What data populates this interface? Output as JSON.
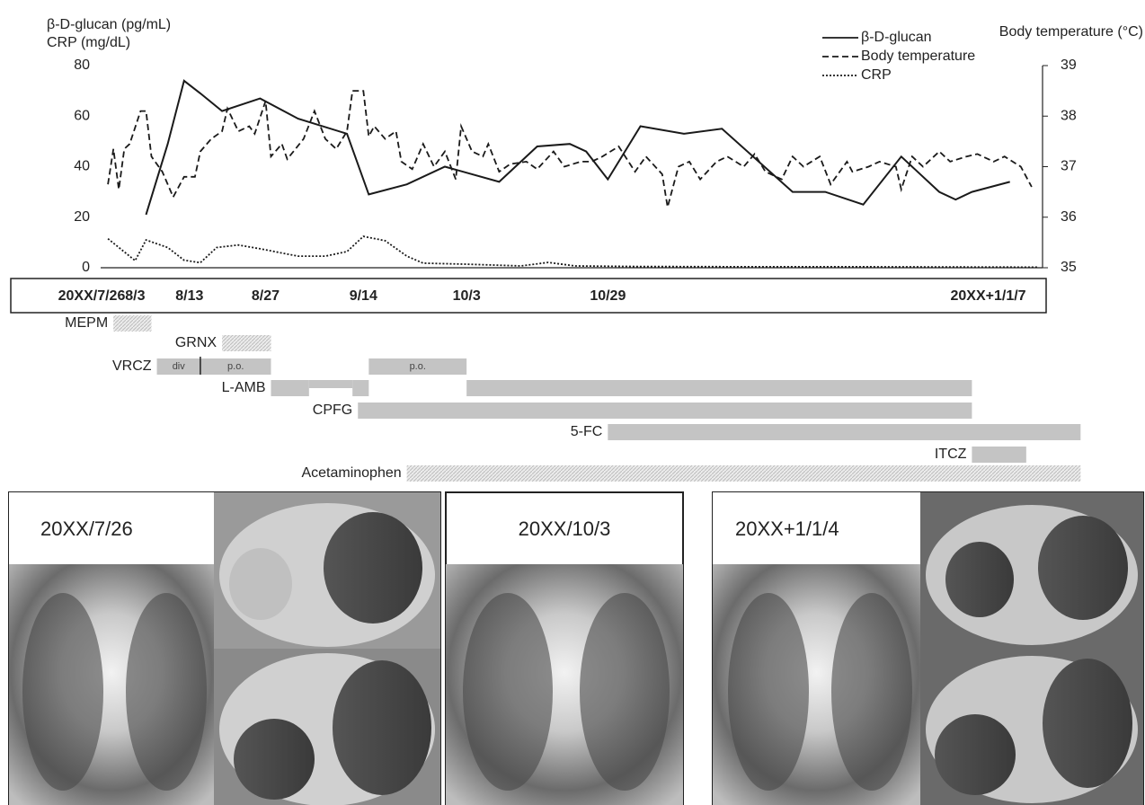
{
  "chart_data": {
    "type": "line",
    "y_label_lines": [
      "β-D-glucan (pg/mL)",
      "CRP (mg/dL)"
    ],
    "y2_label": "Body temperature (°C)",
    "xlim": [
      0,
      175
    ],
    "xticks": [
      {
        "value": 0,
        "label": "20XX/7/26"
      },
      {
        "value": 8,
        "label": "8/3"
      },
      {
        "value": 18,
        "label": "8/13"
      },
      {
        "value": 32,
        "label": "8/27"
      },
      {
        "value": 50,
        "label": "9/14"
      },
      {
        "value": 69,
        "label": "10/3"
      },
      {
        "value": 95,
        "label": "10/29"
      },
      {
        "value": 165,
        "label": "20XX+1/1/7"
      }
    ],
    "ylim": [
      0,
      80
    ],
    "yticks": [
      0,
      20,
      40,
      60,
      80
    ],
    "y2lim": [
      35,
      39
    ],
    "y2ticks": [
      35,
      36,
      37,
      38,
      39
    ],
    "legend": "upper right",
    "series": [
      {
        "name": "β-D-glucan",
        "color": "#1a1a1a",
        "style": "solid",
        "x": [
          10,
          14,
          17,
          20,
          24,
          31,
          38,
          47,
          51,
          58,
          65,
          75,
          82,
          88,
          91,
          95,
          101,
          109,
          116,
          129,
          135,
          142,
          149,
          156,
          159,
          162,
          169
        ],
        "values": [
          21,
          49,
          74,
          69,
          62,
          67,
          59,
          53,
          29,
          33,
          40,
          34,
          48,
          49,
          46,
          35,
          56,
          53,
          55,
          30,
          30,
          25,
          44,
          30,
          27,
          30,
          34
        ]
      },
      {
        "name": "Body temperature",
        "color": "#1a1a1a",
        "style": "dashed",
        "axis": "y2",
        "x": [
          3,
          4,
          5,
          6,
          7,
          9,
          10,
          11,
          13,
          15,
          17,
          19,
          20,
          22,
          24,
          25,
          27,
          29,
          30,
          32,
          33,
          35,
          36,
          39,
          41,
          43,
          45,
          47,
          48,
          50,
          51,
          52,
          54,
          56,
          57,
          59,
          61,
          63,
          65,
          67,
          68,
          70,
          72,
          73,
          75,
          77,
          80,
          82,
          85,
          87,
          90,
          92,
          94,
          97,
          100,
          102,
          105,
          106,
          108,
          110,
          112,
          115,
          117,
          120,
          122,
          124,
          127,
          129,
          131,
          134,
          136,
          139,
          140,
          143,
          145,
          148,
          149,
          151,
          153,
          156,
          158,
          161,
          163,
          166,
          168,
          171,
          173
        ],
        "values": [
          36.65,
          37.35,
          36.55,
          37.35,
          37.45,
          38.1,
          38.1,
          37.2,
          36.9,
          36.4,
          36.8,
          36.8,
          37.3,
          37.55,
          37.7,
          38.15,
          37.7,
          37.8,
          37.65,
          38.3,
          37.2,
          37.45,
          37.15,
          37.55,
          38.1,
          37.55,
          37.35,
          37.7,
          38.5,
          38.5,
          37.6,
          37.8,
          37.55,
          37.7,
          37.1,
          36.95,
          37.45,
          37.0,
          37.3,
          36.75,
          37.8,
          37.3,
          37.2,
          37.45,
          36.9,
          37.05,
          37.1,
          36.95,
          37.3,
          37.0,
          37.1,
          37.1,
          37.2,
          37.4,
          36.9,
          37.2,
          36.85,
          36.2,
          37.0,
          37.1,
          36.75,
          37.1,
          37.2,
          37.0,
          37.25,
          36.9,
          36.75,
          37.2,
          37.0,
          37.2,
          36.65,
          37.1,
          36.9,
          37.0,
          37.1,
          37.0,
          36.55,
          37.2,
          37.0,
          37.3,
          37.1,
          37.2,
          37.25,
          37.1,
          37.2,
          37.0,
          36.6
        ]
      },
      {
        "name": "CRP",
        "color": "#1a1a1a",
        "style": "dotted",
        "x": [
          3,
          8,
          10,
          14,
          17,
          20,
          23,
          27,
          31,
          38,
          43,
          47,
          50,
          54,
          58,
          61,
          69,
          79,
          84,
          89,
          100,
          120,
          140,
          160,
          174
        ],
        "values": [
          11.5,
          2.8,
          11,
          8,
          3,
          2,
          8,
          9,
          7.5,
          4.6,
          4.6,
          6.4,
          12.4,
          10.7,
          4.6,
          1.8,
          1.4,
          0.7,
          2.1,
          0.7,
          0.5,
          0.4,
          0.4,
          0.3,
          0.2
        ]
      }
    ],
    "treatments": [
      {
        "name": "MEPM",
        "hatched": true,
        "segments": [
          {
            "start": 4,
            "end": 11
          }
        ]
      },
      {
        "name": "GRNX",
        "hatched": true,
        "segments": [
          {
            "start": 24,
            "end": 33
          }
        ]
      },
      {
        "name": "VRCZ",
        "hatched": false,
        "segments": [
          {
            "start": 12,
            "end": 20,
            "label": "div"
          },
          {
            "start": 20,
            "end": 33,
            "label": "p.o."
          },
          {
            "start": 51,
            "end": 69,
            "label": "p.o."
          }
        ]
      },
      {
        "name": "L-AMB",
        "hatched": false,
        "segments": [
          {
            "start": 33,
            "end": 40
          },
          {
            "start": 40,
            "end": 48,
            "reduced": true
          },
          {
            "start": 48,
            "end": 51
          },
          {
            "start": 69,
            "end": 162
          }
        ]
      },
      {
        "name": "CPFG",
        "hatched": false,
        "segments": [
          {
            "start": 49,
            "end": 162
          }
        ]
      },
      {
        "name": "5-FC",
        "hatched": false,
        "segments": [
          {
            "start": 95,
            "end": 182
          }
        ]
      },
      {
        "name": "ITCZ",
        "hatched": false,
        "segments": [
          {
            "start": 162,
            "end": 172
          }
        ]
      },
      {
        "name": "Acetaminophen",
        "hatched": true,
        "segments": [
          {
            "start": 58,
            "end": 182
          }
        ]
      }
    ]
  },
  "images": [
    {
      "date": "20XX/7/26"
    },
    {
      "date": "20XX/10/3"
    },
    {
      "date": "20XX+1/1/4"
    }
  ]
}
